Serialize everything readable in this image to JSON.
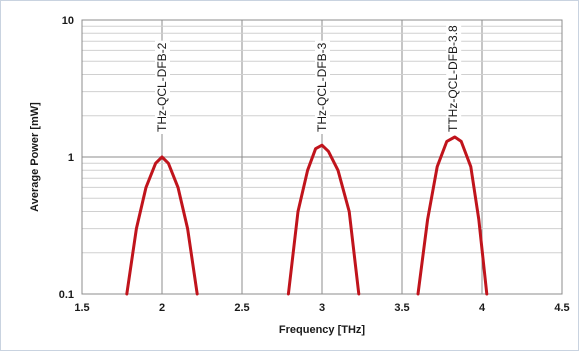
{
  "chart_data": {
    "type": "line",
    "title": "",
    "xlabel": "Frequency [THz]",
    "ylabel": "Average Power [mW]",
    "xlim": [
      1.5,
      4.5
    ],
    "ylim": [
      0.1,
      10
    ],
    "yscale": "log",
    "grid": true,
    "x_ticks": [
      "1.5",
      "2",
      "2.5",
      "3",
      "3.5",
      "4",
      "4.5"
    ],
    "y_ticks": [
      "0.1",
      "1",
      "10"
    ],
    "line_color": "#c0141c",
    "annotations": [
      {
        "text": "THz-QCL-DFB-2",
        "x": 2.0
      },
      {
        "text": "THz-QCL-DFB-3",
        "x": 3.0
      },
      {
        "text": "TTHz-QCL-DFB-3.8",
        "x": 3.82
      }
    ],
    "series": [
      {
        "x": [
          1.78,
          1.84,
          1.9,
          1.96,
          2.0,
          2.04,
          2.1,
          2.16,
          2.22
        ],
        "y": [
          0.1,
          0.3,
          0.6,
          0.9,
          1.0,
          0.9,
          0.6,
          0.3,
          0.1
        ]
      },
      {
        "x": [
          2.79,
          2.85,
          2.91,
          2.96,
          3.0,
          3.04,
          3.1,
          3.17,
          3.23
        ],
        "y": [
          0.1,
          0.4,
          0.8,
          1.15,
          1.22,
          1.1,
          0.8,
          0.4,
          0.1
        ]
      },
      {
        "x": [
          3.6,
          3.66,
          3.72,
          3.78,
          3.83,
          3.87,
          3.93,
          3.98,
          4.03
        ],
        "y": [
          0.1,
          0.35,
          0.85,
          1.3,
          1.4,
          1.3,
          0.85,
          0.35,
          0.1
        ]
      }
    ]
  }
}
